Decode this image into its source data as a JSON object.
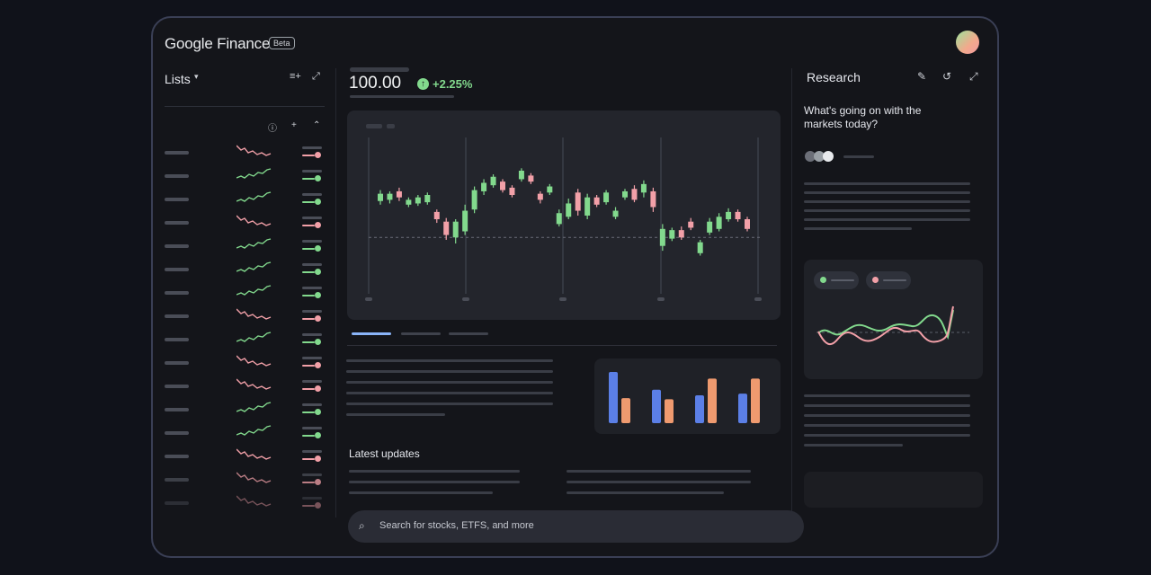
{
  "app": {
    "logo_text": "Google Finance",
    "badge": "Beta"
  },
  "lists": {
    "title": "Lists",
    "rows": [
      {
        "trend": "down"
      },
      {
        "trend": "up"
      },
      {
        "trend": "up"
      },
      {
        "trend": "down"
      },
      {
        "trend": "up"
      },
      {
        "trend": "up"
      },
      {
        "trend": "up"
      },
      {
        "trend": "down"
      },
      {
        "trend": "up"
      },
      {
        "trend": "down"
      },
      {
        "trend": "down"
      },
      {
        "trend": "up"
      },
      {
        "trend": "up"
      },
      {
        "trend": "down"
      },
      {
        "trend": "down"
      },
      {
        "trend": "down"
      }
    ]
  },
  "quote": {
    "price": "100.00",
    "change": "+2.25%"
  },
  "chart_data": {
    "type": "candlestick",
    "candles": [
      {
        "o": 55,
        "c": 61,
        "h": 64,
        "l": 52
      },
      {
        "o": 56,
        "c": 61,
        "h": 63,
        "l": 53
      },
      {
        "o": 63,
        "c": 58,
        "h": 66,
        "l": 55
      },
      {
        "o": 52,
        "c": 56,
        "h": 58,
        "l": 50
      },
      {
        "o": 53,
        "c": 58,
        "h": 60,
        "l": 51
      },
      {
        "o": 54,
        "c": 60,
        "h": 62,
        "l": 52
      },
      {
        "o": 46,
        "c": 40,
        "h": 48,
        "l": 37
      },
      {
        "o": 38,
        "c": 27,
        "h": 41,
        "l": 23
      },
      {
        "o": 25,
        "c": 38,
        "h": 40,
        "l": 20
      },
      {
        "o": 30,
        "c": 47,
        "h": 52,
        "l": 27
      },
      {
        "o": 48,
        "c": 64,
        "h": 67,
        "l": 45
      },
      {
        "o": 63,
        "c": 70,
        "h": 73,
        "l": 60
      },
      {
        "o": 68,
        "c": 75,
        "h": 77,
        "l": 66
      },
      {
        "o": 71,
        "c": 64,
        "h": 73,
        "l": 62
      },
      {
        "o": 66,
        "c": 60,
        "h": 68,
        "l": 58
      },
      {
        "o": 73,
        "c": 80,
        "h": 82,
        "l": 71
      },
      {
        "o": 76,
        "c": 71,
        "h": 78,
        "l": 69
      },
      {
        "o": 61,
        "c": 56,
        "h": 63,
        "l": 53
      },
      {
        "o": 62,
        "c": 67,
        "h": 69,
        "l": 60
      },
      {
        "o": 36,
        "c": 45,
        "h": 48,
        "l": 34
      },
      {
        "o": 42,
        "c": 53,
        "h": 57,
        "l": 40
      },
      {
        "o": 62,
        "c": 47,
        "h": 65,
        "l": 43
      },
      {
        "o": 43,
        "c": 58,
        "h": 61,
        "l": 40
      },
      {
        "o": 58,
        "c": 52,
        "h": 60,
        "l": 50
      },
      {
        "o": 54,
        "c": 62,
        "h": 64,
        "l": 52
      },
      {
        "o": 42,
        "c": 47,
        "h": 50,
        "l": 40
      },
      {
        "o": 58,
        "c": 63,
        "h": 65,
        "l": 56
      },
      {
        "o": 65,
        "c": 56,
        "h": 68,
        "l": 54
      },
      {
        "o": 62,
        "c": 69,
        "h": 72,
        "l": 58
      },
      {
        "o": 63,
        "c": 50,
        "h": 66,
        "l": 46
      },
      {
        "o": 18,
        "c": 32,
        "h": 36,
        "l": 14
      },
      {
        "o": 24,
        "c": 31,
        "h": 33,
        "l": 22
      },
      {
        "o": 31,
        "c": 25,
        "h": 34,
        "l": 23
      },
      {
        "o": 38,
        "c": 33,
        "h": 41,
        "l": 31
      },
      {
        "o": 12,
        "c": 21,
        "h": 23,
        "l": 10
      },
      {
        "o": 29,
        "c": 38,
        "h": 41,
        "l": 27
      },
      {
        "o": 32,
        "c": 42,
        "h": 45,
        "l": 30
      },
      {
        "o": 40,
        "c": 46,
        "h": 49,
        "l": 38
      },
      {
        "o": 46,
        "c": 40,
        "h": 48,
        "l": 38
      },
      {
        "o": 40,
        "c": 32,
        "h": 42,
        "l": 30
      }
    ],
    "reference_line": 25
  },
  "bar_chart": {
    "type": "bar",
    "series": [
      {
        "color": "#5b7fe6",
        "values": [
          92,
          60,
          50,
          53
        ]
      },
      {
        "color": "#ef9a6f",
        "values": [
          45,
          43,
          80,
          80
        ]
      }
    ],
    "ylim": [
      0,
      100
    ]
  },
  "latest": {
    "title": "Latest updates"
  },
  "search": {
    "placeholder": "Search for stocks, ETFS, and more"
  },
  "research": {
    "title": "Research",
    "question": "What's going on with the markets today?"
  },
  "colors": {
    "up": "#82d98d",
    "down": "#f2a0a8",
    "bar_blue": "#5b7fe6",
    "bar_orange": "#ef9a6f"
  }
}
